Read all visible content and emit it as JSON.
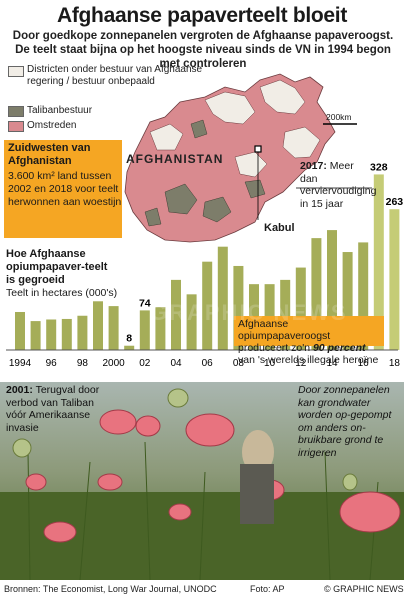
{
  "header": {
    "title": "Afghaanse papaverteelt bloeit",
    "subtitle": "Door goedkope zonnepanelen vergroten de Afghaanse papaveroogst. De teelt staat bijna op het hoogste niveau sinds de VN in 1994 begon met controleren"
  },
  "map": {
    "legend": [
      {
        "label": "Districten onder bestuur van Afghaanse regering / bestuur onbepaald",
        "color": "#f1ede6"
      },
      {
        "label": "Talibanbestuur",
        "color": "#7d7d6a"
      },
      {
        "label": "Omstreden",
        "color": "#d98a8f"
      }
    ],
    "country_label": "AFGHANISTAN",
    "kabul_label": "Kabul",
    "scale_label": "200km"
  },
  "southwest_box": {
    "heading": "Zuidwesten van Afghanistan",
    "body": "3.600 km² land tussen 2002 en 2018 voor teelt herwonnen aan woestijn"
  },
  "chart_data": {
    "type": "bar",
    "title": "Hoe Afghaanse opiumpapaver-teelt is gegroeid",
    "ylabel": "Teelt in hectares (000's)",
    "x": [
      1994,
      1995,
      1996,
      1997,
      1998,
      1999,
      2000,
      2001,
      2002,
      2003,
      2004,
      2005,
      2006,
      2007,
      2008,
      2009,
      2010,
      2011,
      2012,
      2013,
      2014,
      2015,
      2016,
      2017,
      2018
    ],
    "values": [
      71,
      54,
      57,
      58,
      64,
      91,
      82,
      8,
      74,
      80,
      131,
      104,
      165,
      193,
      157,
      123,
      123,
      131,
      154,
      209,
      224,
      183,
      201,
      328,
      263
    ],
    "tick_labels": [
      "1994",
      "96",
      "98",
      "2000",
      "02",
      "04",
      "06",
      "08",
      "10",
      "12",
      "14",
      "16",
      "18"
    ],
    "data_labels": [
      {
        "year": 2001,
        "text": "8"
      },
      {
        "year": 2002,
        "text": "74"
      },
      {
        "year": 2017,
        "text": "328"
      },
      {
        "year": 2018,
        "text": "263"
      }
    ],
    "ylim": [
      0,
      340
    ],
    "bar_color": "#a5ad58",
    "highlight_color": "#c5cc76"
  },
  "annotations": {
    "a2017_year": "2017:",
    "a2017_text": "Meer dan verviervoudiging in 15 jaar",
    "stat_pre": "Afghaanse opiumpapaveroogst produceert zo'n ",
    "stat_bold": "90 percent",
    "stat_post": " van 's werelds illegale heroïne"
  },
  "photo": {
    "caption_left_year": "2001:",
    "caption_left_text": "Terugval door verbod van Taliban vóór Amerikaanse invasie",
    "caption_right": "Door zonnepanelen kan grondwater worden op-gepompt om anders on-bruikbare grond te irrigeren"
  },
  "footer": {
    "sources": "Bronnen: The Economist, Long War Journal, UNODC",
    "photo_credit": "Foto: AP",
    "brand": "© GRAPHIC NEWS"
  },
  "watermark": "GRAPHIC NEWS"
}
